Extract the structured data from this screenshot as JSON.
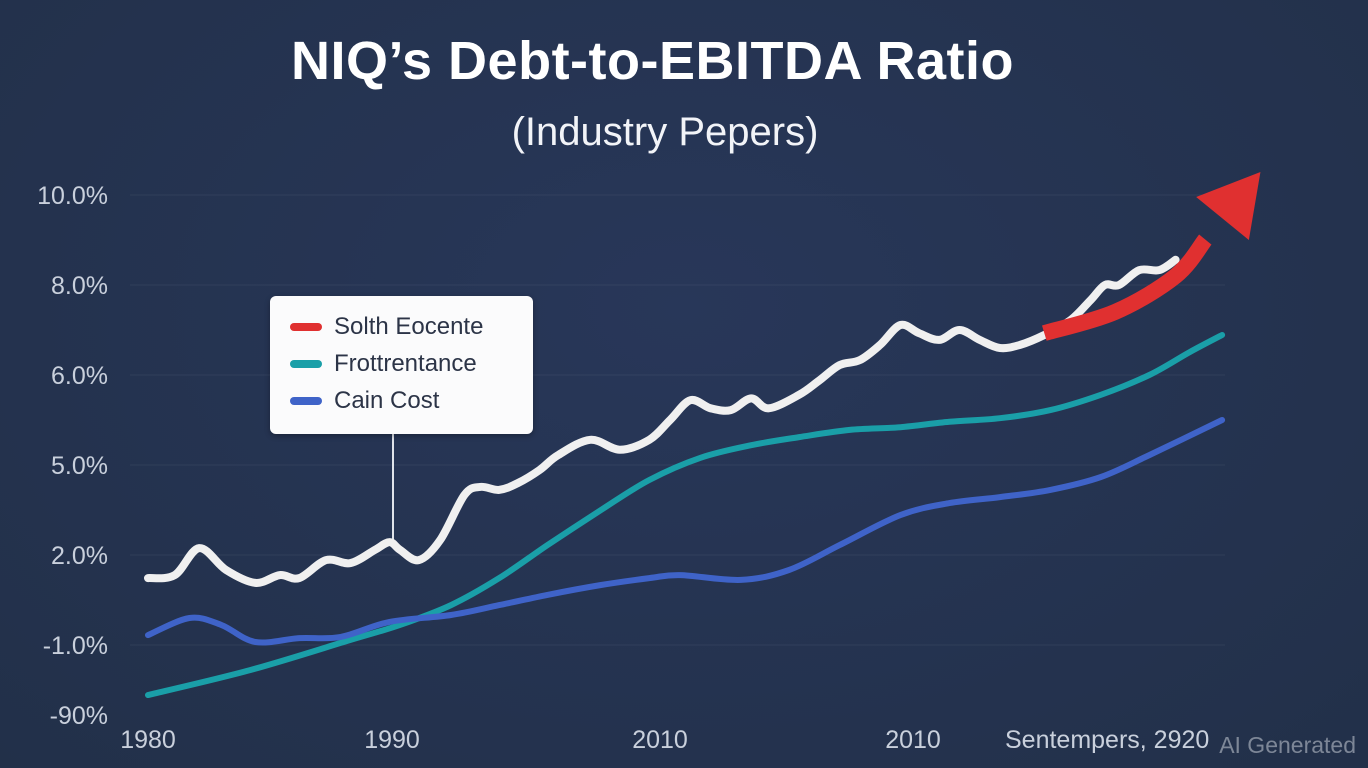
{
  "title": "NIQ’s Debt-to-EBITDA Ratio",
  "subtitle": "(Industry Pepers)",
  "watermark": "AI Generated",
  "colors": {
    "background": "#243250",
    "white_series": "#f0f0f0",
    "teal": "#1a9fa8",
    "blue": "#3f63c8",
    "red": "#e03030"
  },
  "chart_data": {
    "type": "line",
    "title": "NIQ’s Debt-to-EBITDA Ratio",
    "subtitle": "(Industry Pepers)",
    "xlabel": "",
    "ylabel": "",
    "x_note": "x values are positions along the categorical x tick sequence (0 = first tick)",
    "x_ticks": [
      "1980",
      "1990",
      "2010",
      "2010",
      "Sentempers, 2920"
    ],
    "y_ticks": [
      "10.0%",
      "8.0%",
      "6.0%",
      "5.0%",
      "2.0%",
      "-1.0%",
      "-90%"
    ],
    "y_tick_values": [
      10,
      8,
      6,
      5,
      2,
      -1,
      -90
    ],
    "grid": true,
    "legend": {
      "placement": "upper-left",
      "entries": [
        {
          "label": "Solth Eocente",
          "color": "#e03030"
        },
        {
          "label": "Frottrentance",
          "color": "#1a9fa8"
        },
        {
          "label": "Cain Cost",
          "color": "#3f63c8"
        }
      ]
    },
    "series": [
      {
        "name": "white",
        "color": "#f0f0f0",
        "x": [
          0,
          0.11,
          0.21,
          0.32,
          0.44,
          0.54,
          0.62,
          0.73,
          0.83,
          0.93,
          0.99,
          1.03,
          1.1,
          1.18,
          1.27,
          1.33,
          1.4,
          1.47,
          1.55,
          1.62,
          1.74,
          1.85,
          1.96,
          2.04,
          2.12,
          2.2,
          2.28,
          2.36,
          2.43,
          2.55,
          2.63,
          2.71,
          2.79,
          2.87,
          2.95,
          3.03,
          3.13,
          3.23,
          3.33,
          3.43,
          3.53,
          3.65,
          3.78,
          3.88,
          3.95,
          4.02,
          4.12,
          4.22,
          4.3
        ],
        "y": [
          1.23,
          1.33,
          2.23,
          1.5,
          1.07,
          1.33,
          1.23,
          1.83,
          1.73,
          2.17,
          2.43,
          2.17,
          1.83,
          2.5,
          4.0,
          4.27,
          4.17,
          4.4,
          4.83,
          5.11,
          5.28,
          5.17,
          5.28,
          5.5,
          5.72,
          5.63,
          5.61,
          5.74,
          5.63,
          5.78,
          5.94,
          6.22,
          6.33,
          6.67,
          7.11,
          6.93,
          6.78,
          7.0,
          6.78,
          6.6,
          6.67,
          6.89,
          7.22,
          7.67,
          8.0,
          8.0,
          8.33,
          8.33,
          8.56
        ]
      },
      {
        "name": "Frottrentance",
        "color": "#1a9fa8",
        "x": [
          0,
          0.42,
          0.83,
          1.03,
          1.22,
          1.4,
          1.58,
          1.78,
          1.96,
          2.16,
          2.36,
          2.55,
          2.75,
          2.95,
          3.18,
          3.43,
          3.68,
          3.93,
          4.17,
          4.37,
          4.53
        ],
        "y": [
          -64.6,
          -32.8,
          -0.83,
          -0.33,
          0.33,
          1.23,
          2.33,
          3.5,
          4.5,
          5.08,
          5.22,
          5.31,
          5.39,
          5.42,
          5.48,
          5.52,
          5.61,
          5.78,
          6.0,
          6.51,
          6.89
        ]
      },
      {
        "name": "Cain Cost",
        "color": "#3f63c8",
        "x": [
          0,
          0.17,
          0.3,
          0.44,
          0.62,
          0.79,
          0.99,
          1.22,
          1.4,
          1.58,
          1.78,
          1.96,
          2.08,
          2.32,
          2.51,
          2.71,
          2.95,
          3.18,
          3.43,
          3.68,
          3.93,
          4.17,
          4.53
        ],
        "y": [
          -0.67,
          -0.1,
          -0.33,
          -0.9,
          -0.77,
          -0.73,
          -0.23,
          0,
          0.33,
          0.67,
          1.0,
          1.23,
          1.33,
          1.17,
          1.5,
          2.33,
          3.33,
          3.73,
          3.93,
          4.17,
          4.6,
          5.11,
          5.5
        ]
      },
      {
        "name": "Solth Eocente",
        "color": "#e03030",
        "style": "arrow",
        "x": [
          3.65,
          4.0,
          4.3,
          4.72
        ],
        "y": [
          6.93,
          7.4,
          8.2,
          10.51
        ]
      }
    ]
  }
}
